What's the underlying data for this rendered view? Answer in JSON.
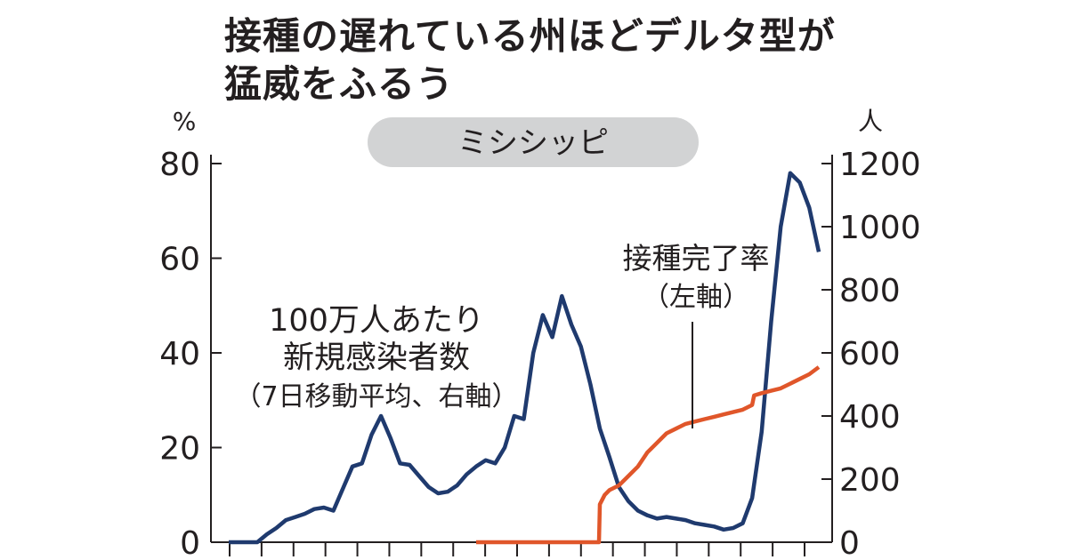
{
  "title_lines": [
    "接種の遅れている州ほどデルタ型が",
    "猛威をふるう"
  ],
  "chart_data": {
    "type": "line",
    "panel_label": "ミシシッピ",
    "left_axis": {
      "unit": "%",
      "ylim": [
        0,
        80
      ],
      "ticks": [
        "0",
        "20",
        "40",
        "60",
        "80"
      ]
    },
    "right_axis": {
      "unit": "人",
      "ylim": [
        0,
        1200
      ],
      "ticks": [
        "0",
        "200",
        "400",
        "600",
        "800",
        "1000",
        "1200"
      ]
    },
    "x_ticks": 19,
    "grid": false,
    "series": [
      {
        "label_lines": [
          "100万人あたり",
          "新規感染者数",
          "（7日移動平均、右軸）"
        ],
        "axis": "right",
        "color": "#1f3a6e",
        "points": [
          [
            0,
            0
          ],
          [
            1,
            0
          ],
          [
            2,
            0
          ],
          [
            3,
            0
          ],
          [
            4,
            25
          ],
          [
            5,
            45
          ],
          [
            6,
            70
          ],
          [
            7,
            80
          ],
          [
            8,
            90
          ],
          [
            9,
            105
          ],
          [
            10,
            110
          ],
          [
            11,
            100
          ],
          [
            12,
            170
          ],
          [
            13,
            240
          ],
          [
            14,
            250
          ],
          [
            15,
            340
          ],
          [
            16,
            400
          ],
          [
            17,
            330
          ],
          [
            18,
            250
          ],
          [
            19,
            245
          ],
          [
            20,
            210
          ],
          [
            21,
            175
          ],
          [
            22,
            155
          ],
          [
            23,
            160
          ],
          [
            24,
            180
          ],
          [
            25,
            215
          ],
          [
            26,
            240
          ],
          [
            27,
            260
          ],
          [
            28,
            250
          ],
          [
            29,
            300
          ],
          [
            30,
            400
          ],
          [
            31,
            390
          ],
          [
            32,
            600
          ],
          [
            33,
            720
          ],
          [
            34,
            650
          ],
          [
            35,
            780
          ],
          [
            36,
            690
          ],
          [
            37,
            620
          ],
          [
            38,
            500
          ],
          [
            39,
            360
          ],
          [
            40,
            270
          ],
          [
            41,
            175
          ],
          [
            42,
            130
          ],
          [
            43,
            100
          ],
          [
            44,
            85
          ],
          [
            45,
            75
          ],
          [
            46,
            80
          ],
          [
            47,
            75
          ],
          [
            48,
            70
          ],
          [
            49,
            60
          ],
          [
            50,
            55
          ],
          [
            51,
            50
          ],
          [
            52,
            40
          ],
          [
            53,
            45
          ],
          [
            54,
            60
          ],
          [
            55,
            140
          ],
          [
            56,
            350
          ],
          [
            57,
            700
          ],
          [
            58,
            1000
          ],
          [
            59,
            1170
          ],
          [
            60,
            1140
          ],
          [
            61,
            1060
          ],
          [
            62,
            920
          ]
        ]
      },
      {
        "label_lines": [
          "接種完了率",
          "（左軸）"
        ],
        "axis": "left",
        "color": "#e0562a",
        "points": [
          [
            26,
            0
          ],
          [
            27,
            0
          ],
          [
            28,
            0
          ],
          [
            29,
            0
          ],
          [
            30,
            0
          ],
          [
            31,
            0
          ],
          [
            32,
            0
          ],
          [
            33,
            0
          ],
          [
            34,
            0
          ],
          [
            35,
            0
          ],
          [
            36,
            0
          ],
          [
            37,
            0
          ],
          [
            38,
            0
          ],
          [
            38.9,
            0
          ],
          [
            39,
            8
          ],
          [
            39.5,
            10
          ],
          [
            40,
            11
          ],
          [
            41,
            12
          ],
          [
            42,
            14
          ],
          [
            43,
            16
          ],
          [
            44,
            19
          ],
          [
            45,
            21
          ],
          [
            46,
            23
          ],
          [
            47,
            24
          ],
          [
            48,
            25
          ],
          [
            49,
            25.5
          ],
          [
            50,
            26
          ],
          [
            51,
            26.5
          ],
          [
            52,
            27
          ],
          [
            53,
            27.5
          ],
          [
            54,
            28
          ],
          [
            55,
            29
          ],
          [
            55.2,
            31
          ],
          [
            56,
            31.5
          ],
          [
            57,
            32
          ],
          [
            58,
            32.5
          ],
          [
            59,
            33.5
          ],
          [
            60,
            34.5
          ],
          [
            61,
            35.5
          ],
          [
            62,
            37
          ]
        ]
      }
    ]
  }
}
